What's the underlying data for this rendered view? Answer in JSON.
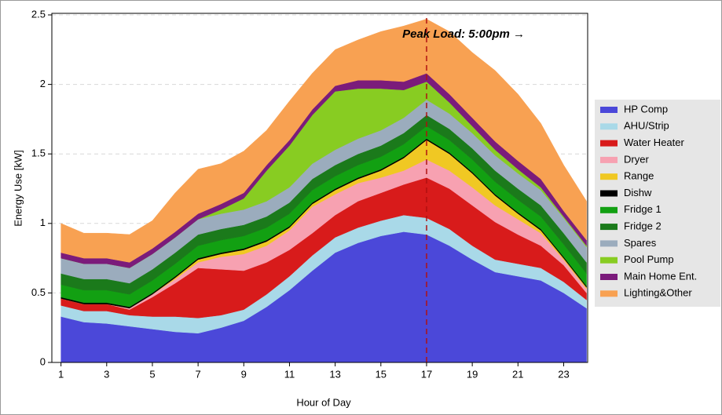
{
  "chart_data": {
    "type": "stacked_area",
    "xlabel": "Hour of Day",
    "ylabel": "Energy Use [kW]",
    "x": [
      1,
      2,
      3,
      4,
      5,
      6,
      7,
      8,
      9,
      10,
      11,
      12,
      13,
      14,
      15,
      16,
      17,
      18,
      19,
      20,
      21,
      22,
      23,
      24
    ],
    "xlim": [
      0.6,
      24.05
    ],
    "xticks": [
      1,
      3,
      5,
      7,
      9,
      11,
      13,
      15,
      17,
      19,
      21,
      23
    ],
    "ylim": [
      0,
      2.5
    ],
    "yticks": [
      0,
      0.5,
      1,
      1.5,
      2,
      2.5
    ],
    "grid": true,
    "annotation": {
      "text": "Peak Load: 5:00pm →",
      "x": 17,
      "color": "#b01010"
    },
    "series": [
      {
        "name": "HP Comp",
        "color": "#4b48d9",
        "values": [
          0.33,
          0.29,
          0.28,
          0.26,
          0.24,
          0.22,
          0.21,
          0.25,
          0.3,
          0.4,
          0.52,
          0.66,
          0.79,
          0.86,
          0.91,
          0.94,
          0.92,
          0.84,
          0.74,
          0.65,
          0.62,
          0.59,
          0.5,
          0.39
        ]
      },
      {
        "name": "AHU/Strip",
        "color": "#a9d9e8",
        "values": [
          0.08,
          0.08,
          0.09,
          0.08,
          0.09,
          0.11,
          0.11,
          0.09,
          0.08,
          0.09,
          0.1,
          0.11,
          0.11,
          0.11,
          0.11,
          0.12,
          0.12,
          0.12,
          0.1,
          0.09,
          0.09,
          0.09,
          0.08,
          0.06
        ]
      },
      {
        "name": "Water Heater",
        "color": "#d81b1b",
        "values": [
          0.05,
          0.05,
          0.05,
          0.04,
          0.14,
          0.24,
          0.36,
          0.33,
          0.28,
          0.23,
          0.19,
          0.16,
          0.16,
          0.19,
          0.2,
          0.22,
          0.29,
          0.29,
          0.29,
          0.27,
          0.21,
          0.16,
          0.12,
          0.05
        ]
      },
      {
        "name": "Dryer",
        "color": "#f7a1b1",
        "values": [
          0,
          0,
          0,
          0.01,
          0.02,
          0.03,
          0.04,
          0.09,
          0.12,
          0.12,
          0.14,
          0.19,
          0.15,
          0.13,
          0.11,
          0.1,
          0.13,
          0.13,
          0.13,
          0.12,
          0.11,
          0.09,
          0.04,
          0.03
        ]
      },
      {
        "name": "Range",
        "color": "#f0c823",
        "values": [
          0,
          0,
          0,
          0,
          0,
          0.01,
          0.02,
          0.02,
          0.03,
          0.03,
          0.02,
          0.02,
          0.03,
          0.03,
          0.05,
          0.09,
          0.14,
          0.12,
          0.1,
          0.07,
          0.04,
          0.02,
          0.01,
          0.01
        ]
      },
      {
        "name": "Dishw",
        "color": "#000000",
        "values": [
          0.01,
          0.01,
          0.01,
          0.01,
          0.01,
          0.01,
          0.01,
          0.01,
          0.01,
          0.01,
          0.01,
          0.01,
          0.01,
          0.01,
          0.01,
          0.01,
          0.01,
          0.01,
          0.01,
          0.01,
          0.01,
          0.01,
          0.01,
          0.01
        ]
      },
      {
        "name": "Fridge 1",
        "color": "#12a012",
        "values": [
          0.09,
          0.09,
          0.09,
          0.09,
          0.09,
          0.09,
          0.09,
          0.09,
          0.09,
          0.09,
          0.09,
          0.09,
          0.09,
          0.09,
          0.09,
          0.09,
          0.09,
          0.09,
          0.09,
          0.09,
          0.09,
          0.09,
          0.09,
          0.09
        ]
      },
      {
        "name": "Fridge 2",
        "color": "#1b7a1b",
        "values": [
          0.08,
          0.08,
          0.08,
          0.08,
          0.08,
          0.08,
          0.08,
          0.08,
          0.08,
          0.08,
          0.08,
          0.08,
          0.08,
          0.08,
          0.08,
          0.08,
          0.08,
          0.08,
          0.08,
          0.08,
          0.08,
          0.08,
          0.08,
          0.08
        ]
      },
      {
        "name": "Spares",
        "color": "#9bacbd",
        "values": [
          0.11,
          0.11,
          0.11,
          0.11,
          0.11,
          0.11,
          0.11,
          0.11,
          0.11,
          0.11,
          0.11,
          0.11,
          0.11,
          0.11,
          0.11,
          0.11,
          0.11,
          0.11,
          0.11,
          0.11,
          0.11,
          0.11,
          0.11,
          0.11
        ]
      },
      {
        "name": "Pool Pump",
        "color": "#88cc22",
        "values": [
          0,
          0,
          0,
          0,
          0,
          0,
          0,
          0.03,
          0.08,
          0.22,
          0.3,
          0.35,
          0.42,
          0.36,
          0.3,
          0.2,
          0.13,
          0.08,
          0.05,
          0.04,
          0.03,
          0.02,
          0.01,
          0.01
        ]
      },
      {
        "name": "Main Home Ent.",
        "color": "#7b1b7b",
        "values": [
          0.04,
          0.04,
          0.04,
          0.04,
          0.04,
          0.04,
          0.04,
          0.04,
          0.04,
          0.04,
          0.04,
          0.04,
          0.04,
          0.06,
          0.06,
          0.06,
          0.06,
          0.06,
          0.06,
          0.06,
          0.06,
          0.06,
          0.04,
          0.04
        ]
      },
      {
        "name": "Lighting&Other",
        "color": "#f8a152",
        "values": [
          0.21,
          0.18,
          0.18,
          0.2,
          0.2,
          0.28,
          0.32,
          0.29,
          0.3,
          0.25,
          0.28,
          0.26,
          0.26,
          0.29,
          0.35,
          0.4,
          0.39,
          0.45,
          0.47,
          0.51,
          0.48,
          0.4,
          0.33,
          0.28
        ]
      }
    ]
  }
}
